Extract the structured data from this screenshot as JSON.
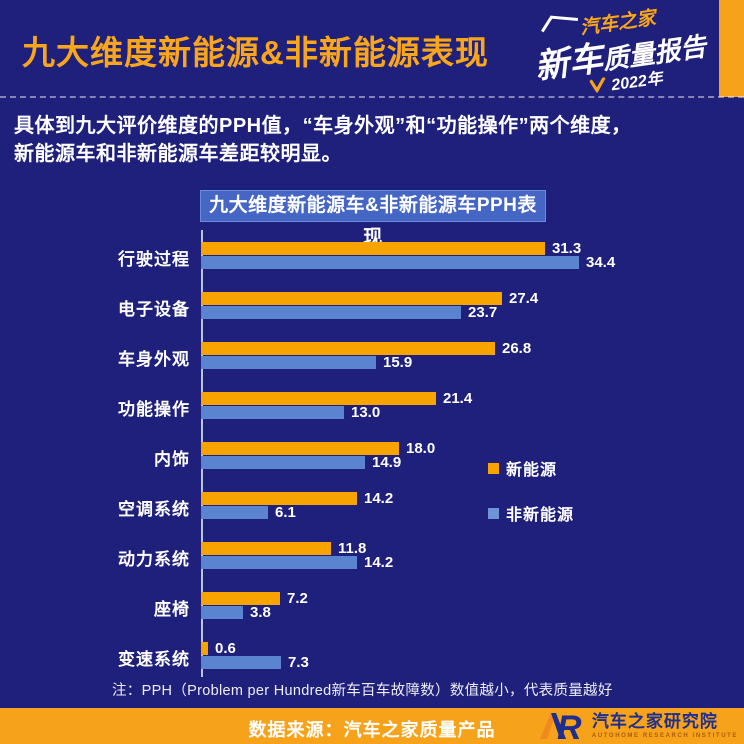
{
  "header": {
    "title": "九大维度新能源&非新能源表现",
    "logo": {
      "brand": "汽车之家",
      "report_big": "新车",
      "report_small": "质量报告",
      "year": "2022年"
    }
  },
  "intro": {
    "line1": "具体到九大评价维度的PPH值，“车身外观”和“功能操作”两个维度，",
    "line2": "新能源车和非新能源车差距较明显。"
  },
  "chart_data": {
    "type": "bar",
    "orientation": "horizontal",
    "title": "九大维度新能源车&非新能源车PPH表现",
    "categories": [
      "行驶过程",
      "电子设备",
      "车身外观",
      "功能操作",
      "内饰",
      "空调系统",
      "动力系统",
      "座椅",
      "变速系统"
    ],
    "series": [
      {
        "name": "新能源",
        "color": "#F7A400",
        "values": [
          31.3,
          27.4,
          26.8,
          21.4,
          18.0,
          14.2,
          11.8,
          7.2,
          0.6
        ]
      },
      {
        "name": "非新能源",
        "color": "#5B84D0",
        "values": [
          34.4,
          23.7,
          15.9,
          13.0,
          14.9,
          6.1,
          14.2,
          3.8,
          7.3
        ]
      }
    ],
    "xlim": [
      0,
      34.4
    ],
    "value_labels": true,
    "grid": false,
    "legend_position": "right"
  },
  "note": "注：PPH（Problem per Hundred新车百车故障数）数值越小，代表质量越好",
  "footer": {
    "source": "数据来源：汽车之家质量产品",
    "logo_mark": "AR",
    "logo_text": "汽车之家研究院",
    "logo_subtext": "AUTOHOME RESEARCH INSTITUTE"
  },
  "colors": {
    "background": "#1F1F7C",
    "accent_orange": "#FAA61A",
    "bar_orange": "#F7A400",
    "bar_blue": "#5B84D0",
    "title_badge_blue": "#4566C4",
    "footer_band": "#F7A21B",
    "logo_navy": "#1E2F8F"
  }
}
